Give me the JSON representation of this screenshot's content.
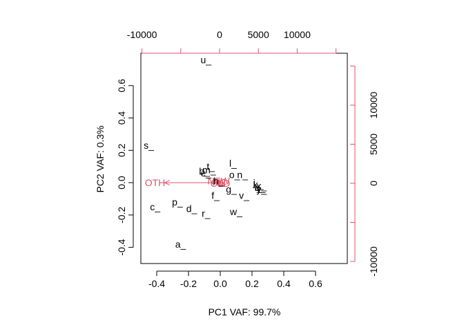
{
  "chart_data": {
    "type": "scatter",
    "subtype": "biplot",
    "xlabel": "PC1 VAF: 99.7%",
    "ylabel": "PC2 VAF: 0.3%",
    "xlim": [
      -0.5,
      0.8
    ],
    "ylim": [
      -0.5,
      0.8
    ],
    "x_ticks": [
      -0.4,
      -0.2,
      0.0,
      0.2,
      0.4,
      0.6
    ],
    "y_ticks": [
      -0.4,
      -0.2,
      0.0,
      0.2,
      0.4,
      0.6
    ],
    "x_tick_labels": [
      "-0.4",
      "-0.2",
      "0.0",
      "0.2",
      "0.4",
      "0.6"
    ],
    "y_tick_labels": [
      "-0.4",
      "-0.2",
      "0.0",
      "0.2",
      "0.4",
      "0.6"
    ],
    "top_axis": {
      "ticks": [
        -10000,
        -5000,
        0,
        5000,
        10000,
        15000
      ],
      "labels": [
        "-10000",
        "",
        "0",
        "5000",
        "10000",
        ""
      ],
      "color": "#DF536B"
    },
    "right_axis": {
      "ticks": [
        -10000,
        -5000,
        0,
        5000,
        10000,
        15000
      ],
      "labels": [
        "-10000",
        "",
        "0",
        "5000",
        "10000",
        ""
      ],
      "color": "#DF536B"
    },
    "points": [
      {
        "label": "u_",
        "x": -0.09,
        "y": 0.76
      },
      {
        "label": "s_",
        "x": -0.45,
        "y": 0.23
      },
      {
        "label": "l_",
        "x": 0.08,
        "y": 0.12
      },
      {
        "label": "t_",
        "x": -0.06,
        "y": 0.1
      },
      {
        "label": "m_",
        "x": -0.07,
        "y": 0.08
      },
      {
        "label": "b_",
        "x": -0.1,
        "y": 0.07
      },
      {
        "label": "e_",
        "x": -0.09,
        "y": 0.06
      },
      {
        "label": "h_",
        "x": -0.01,
        "y": 0.01
      },
      {
        "label": "o_",
        "x": 0.09,
        "y": 0.05
      },
      {
        "label": "n_",
        "x": 0.14,
        "y": 0.05
      },
      {
        "label": "j_",
        "x": 0.23,
        "y": 0.0
      },
      {
        "label": "k_",
        "x": 0.24,
        "y": -0.01
      },
      {
        "label": "x_",
        "x": 0.26,
        "y": -0.02
      },
      {
        "label": "q_",
        "x": 0.25,
        "y": -0.03
      },
      {
        "label": "y_",
        "x": 0.26,
        "y": -0.04
      },
      {
        "label": "i_",
        "x": 0.24,
        "y": -0.03
      },
      {
        "label": "g_",
        "x": 0.07,
        "y": -0.04
      },
      {
        "label": "v_",
        "x": 0.15,
        "y": -0.08
      },
      {
        "label": "f_",
        "x": -0.03,
        "y": -0.08
      },
      {
        "label": "p_",
        "x": -0.27,
        "y": -0.12
      },
      {
        "label": "c_",
        "x": -0.41,
        "y": -0.15
      },
      {
        "label": "d_",
        "x": -0.18,
        "y": -0.16
      },
      {
        "label": "r_",
        "x": -0.09,
        "y": -0.19
      },
      {
        "label": "w_",
        "x": 0.1,
        "y": -0.18
      },
      {
        "label": "a_",
        "x": -0.25,
        "y": -0.38
      }
    ],
    "vectors": [
      {
        "label": "OTH",
        "x": -0.35,
        "y": 0.0
      },
      {
        "label": "NEW",
        "x": -0.01,
        "y": 0.01
      },
      {
        "label": "OLD",
        "x": 0.0,
        "y": -0.005
      },
      {
        "label": "RC",
        "x": -0.005,
        "y": 0.003
      },
      {
        "label": "B",
        "x": 0.0,
        "y": 0.0
      }
    ],
    "vector_color": "#DF536B",
    "grid": false,
    "legend": "none"
  }
}
